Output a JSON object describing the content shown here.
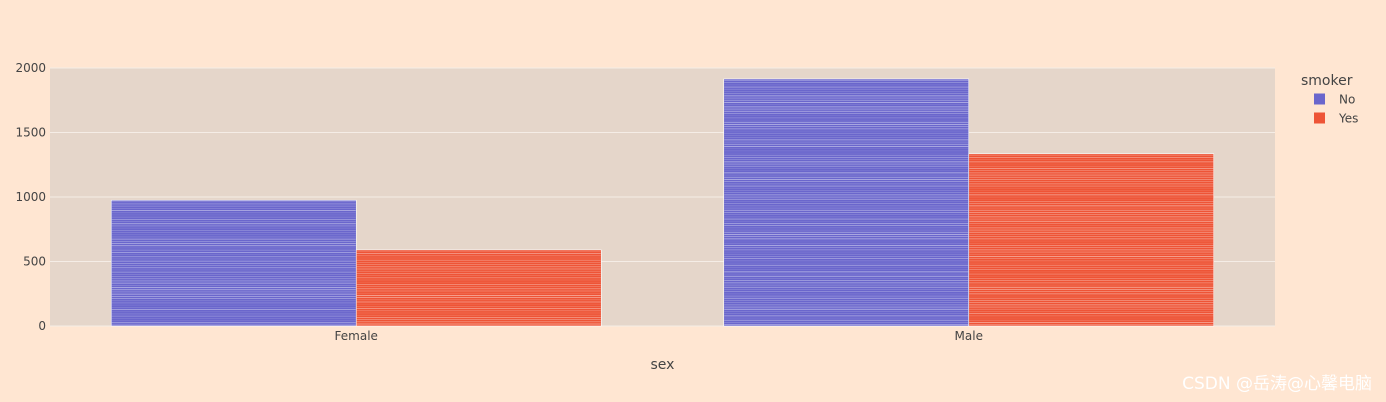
{
  "chart_data": {
    "type": "bar",
    "barmode": "group",
    "categories": [
      "Female",
      "Male"
    ],
    "series": [
      {
        "name": "No",
        "values": [
          975,
          1915
        ],
        "color": "#6a66cc"
      },
      {
        "name": "Yes",
        "values": [
          590,
          1335
        ],
        "color": "#ee5436"
      }
    ],
    "xlabel": "sex",
    "ylabel": "",
    "ylim": [
      0,
      2000
    ],
    "yticks": [
      0,
      500,
      1000,
      1500,
      2000
    ],
    "ytick_labels": [
      "0",
      "500",
      "1000",
      "1500",
      "2000"
    ],
    "legend": {
      "title": "smoker",
      "placement": "right"
    },
    "grid": true,
    "colors": {
      "page_bg": "#ffe6d2",
      "plot_bg": "#e5d6ca",
      "grid": "#f5ede6"
    }
  },
  "watermark": "CSDN @岳涛@心馨电脑"
}
